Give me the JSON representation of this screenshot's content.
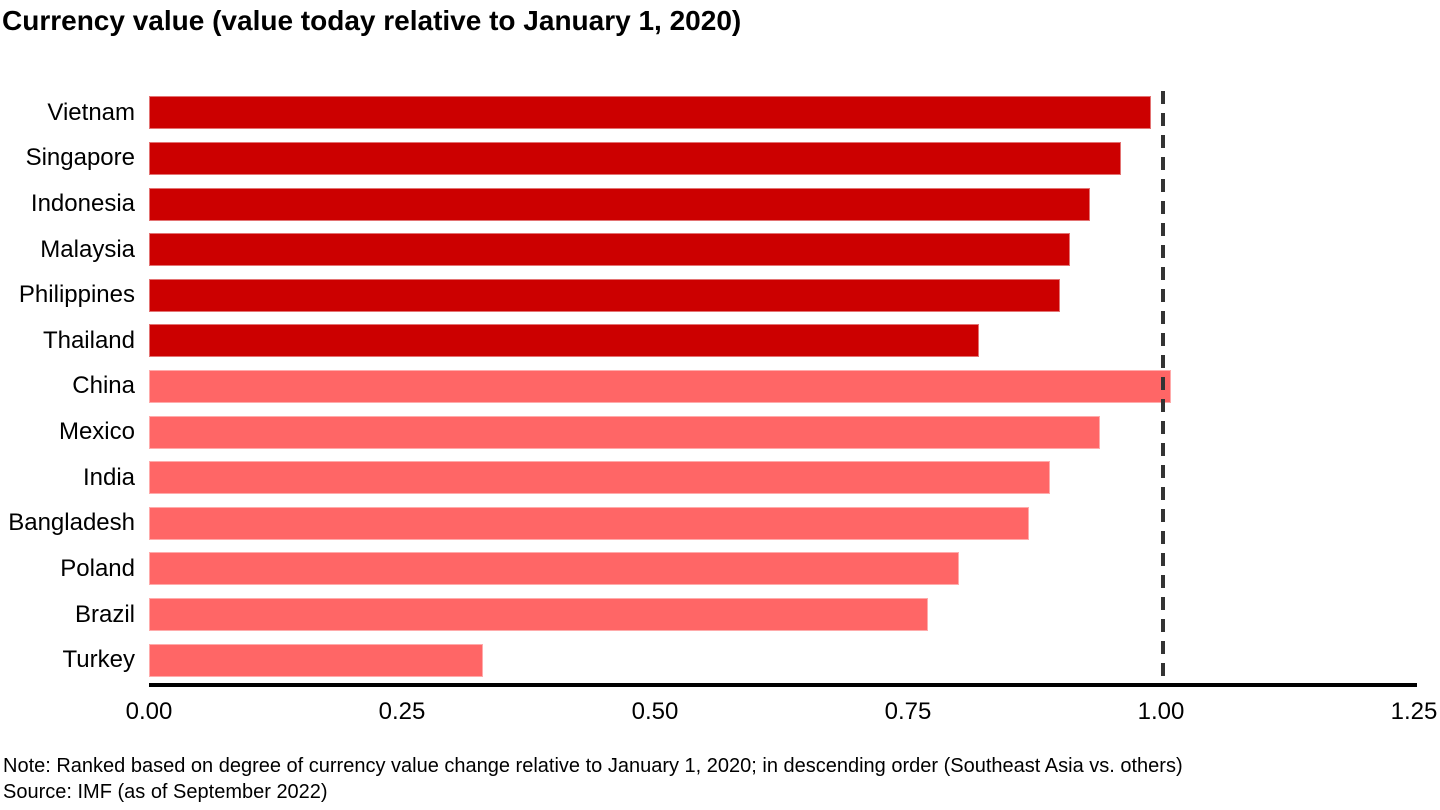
{
  "chart_data": {
    "type": "bar",
    "orientation": "horizontal",
    "title": "Currency value (value today relative to January 1, 2020)",
    "categories": [
      "Vietnam",
      "Singapore",
      "Indonesia",
      "Malaysia",
      "Philippines",
      "Thailand",
      "China",
      "Mexico",
      "India",
      "Bangladesh",
      "Poland",
      "Brazil",
      "Turkey"
    ],
    "values": [
      0.99,
      0.96,
      0.93,
      0.91,
      0.9,
      0.82,
      1.01,
      0.94,
      0.89,
      0.87,
      0.8,
      0.77,
      0.33
    ],
    "groups": [
      "southeast-asia",
      "southeast-asia",
      "southeast-asia",
      "southeast-asia",
      "southeast-asia",
      "southeast-asia",
      "others",
      "others",
      "others",
      "others",
      "others",
      "others",
      "others"
    ],
    "group_colors": {
      "southeast-asia": "#CC0000",
      "others": "#FF6666"
    },
    "xlim": [
      0,
      1.25
    ],
    "x_ticks": [
      "0.00",
      "0.25",
      "0.50",
      "0.75",
      "1.00",
      "1.25"
    ],
    "x_tick_values": [
      0,
      0.25,
      0.5,
      0.75,
      1.0,
      1.25
    ],
    "reference_line": {
      "value": 1.0,
      "style": "dashed",
      "color": "#333333"
    },
    "grid": "off",
    "legend": "none",
    "axis_color": "#000000"
  },
  "footnotes": {
    "note": "Note: Ranked based on degree of currency value change relative to January 1, 2020; in descending order (Southeast Asia vs. others)",
    "source": "Source: IMF (as of September 2022)"
  }
}
